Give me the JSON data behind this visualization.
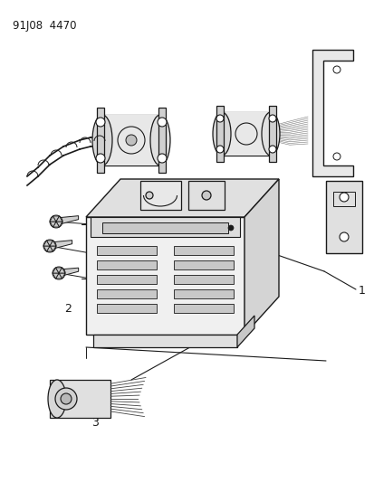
{
  "title": "91J08  4470",
  "background_color": "#ffffff",
  "line_color": "#1a1a1a",
  "label_1": "1",
  "label_2": "2",
  "label_3": "3",
  "figsize": [
    4.14,
    5.33
  ],
  "dpi": 100
}
